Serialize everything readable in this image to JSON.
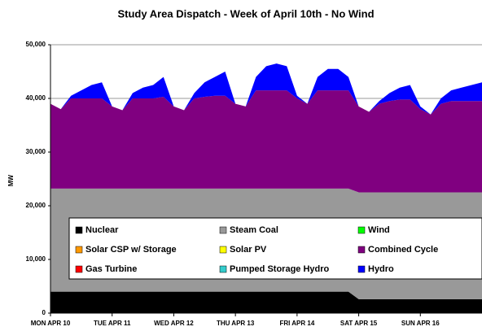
{
  "chart_data": {
    "type": "stacked-area",
    "title": "Study Area Dispatch - Week of April 10th - No Wind",
    "y_label": "MW",
    "x": [
      0,
      4,
      8,
      12,
      16,
      20,
      24,
      28,
      32,
      36,
      40,
      44,
      48,
      52,
      56,
      60,
      64,
      68,
      72,
      76,
      80,
      84,
      88,
      92,
      96,
      100,
      104,
      108,
      112,
      116,
      120,
      124,
      128,
      132,
      136,
      140,
      144,
      148,
      152,
      156,
      160,
      164,
      168
    ],
    "xlim": [
      0,
      168
    ],
    "xticks": [
      {
        "value": 0,
        "label": "MON APR 10"
      },
      {
        "value": 24,
        "label": "TUE APR 11"
      },
      {
        "value": 48,
        "label": "WED APR 12"
      },
      {
        "value": 72,
        "label": "THU APR 13"
      },
      {
        "value": 96,
        "label": "FRI APR 14"
      },
      {
        "value": 120,
        "label": "SAT APR 15"
      },
      {
        "value": 144,
        "label": "SUN APR 16"
      }
    ],
    "ylim": [
      0,
      50000
    ],
    "yticks": [
      0,
      {
        "value": 10000,
        "label": "10,000"
      },
      {
        "value": 20000,
        "label": "20,000"
      },
      {
        "value": 30000,
        "label": "30,000"
      },
      {
        "value": 40000,
        "label": "40,000"
      },
      {
        "value": 50000,
        "label": "50,000"
      }
    ],
    "grid": true,
    "legend": "inside-bottom",
    "series": [
      {
        "name": "Nuclear",
        "color": "#000000",
        "values": [
          4000,
          4000,
          4000,
          4000,
          4000,
          4000,
          4000,
          4000,
          4000,
          4000,
          4000,
          4000,
          4000,
          4000,
          4000,
          4000,
          4000,
          4000,
          4000,
          4000,
          4000,
          4000,
          4000,
          4000,
          4000,
          4000,
          4000,
          4000,
          4000,
          4000,
          2600,
          2600,
          2600,
          2600,
          2600,
          2600,
          2600,
          2600,
          2600,
          2600,
          2600,
          2600,
          2600
        ]
      },
      {
        "name": "Steam Coal",
        "color": "#999999",
        "values": [
          19200,
          19200,
          19200,
          19200,
          19200,
          19200,
          19200,
          19200,
          19200,
          19200,
          19200,
          19200,
          19200,
          19200,
          19200,
          19200,
          19200,
          19200,
          19200,
          19200,
          19200,
          19200,
          19200,
          19200,
          19200,
          19200,
          19200,
          19200,
          19200,
          19200,
          19900,
          19900,
          19900,
          19900,
          19900,
          19900,
          19900,
          19900,
          19900,
          19900,
          19900,
          19900,
          19900
        ]
      },
      {
        "name": "Wind",
        "color": "#00ff00",
        "values": [
          0,
          0,
          0,
          0,
          0,
          0,
          0,
          0,
          0,
          0,
          0,
          0,
          0,
          0,
          0,
          0,
          0,
          0,
          0,
          0,
          0,
          0,
          0,
          0,
          0,
          0,
          0,
          0,
          0,
          0,
          0,
          0,
          0,
          0,
          0,
          0,
          0,
          0,
          0,
          0,
          0,
          0,
          0
        ]
      },
      {
        "name": "Solar CSP w/ Storage",
        "color": "#ff9900",
        "values": [
          0,
          0,
          0,
          0,
          0,
          0,
          0,
          0,
          0,
          0,
          0,
          0,
          0,
          0,
          0,
          0,
          0,
          0,
          0,
          0,
          0,
          0,
          0,
          0,
          0,
          0,
          0,
          0,
          0,
          0,
          0,
          0,
          0,
          0,
          0,
          0,
          0,
          0,
          0,
          0,
          0,
          0,
          0
        ]
      },
      {
        "name": "Solar PV",
        "color": "#ffff00",
        "values": [
          0,
          0,
          0,
          0,
          0,
          0,
          0,
          0,
          0,
          0,
          0,
          0,
          0,
          0,
          0,
          0,
          0,
          0,
          0,
          0,
          0,
          0,
          0,
          0,
          0,
          0,
          0,
          0,
          0,
          0,
          0,
          0,
          0,
          0,
          0,
          0,
          0,
          0,
          0,
          0,
          0,
          0,
          0
        ]
      },
      {
        "name": "Combined Cycle",
        "color": "#800080",
        "values": [
          15800,
          14800,
          16800,
          16800,
          16800,
          16800,
          15300,
          14600,
          16800,
          16800,
          16800,
          17100,
          15300,
          14600,
          16800,
          17100,
          17300,
          17300,
          15800,
          15300,
          18300,
          18300,
          18300,
          18300,
          16800,
          15800,
          18300,
          18300,
          18300,
          18300,
          16000,
          15000,
          16500,
          17000,
          17300,
          17300,
          15500,
          14500,
          16500,
          17000,
          17000,
          17000,
          17000
        ]
      },
      {
        "name": "Gas Turbine",
        "color": "#ff0000",
        "values": [
          0,
          0,
          0,
          0,
          0,
          0,
          0,
          0,
          0,
          0,
          0,
          0,
          0,
          0,
          0,
          0,
          0,
          0,
          0,
          0,
          0,
          0,
          0,
          0,
          0,
          0,
          0,
          0,
          0,
          0,
          0,
          0,
          0,
          0,
          0,
          0,
          0,
          0,
          0,
          0,
          0,
          0,
          0
        ]
      },
      {
        "name": "Pumped Storage Hydro",
        "color": "#33cccc",
        "values": [
          0,
          0,
          0,
          0,
          0,
          0,
          0,
          0,
          0,
          0,
          0,
          0,
          0,
          0,
          0,
          0,
          0,
          0,
          0,
          0,
          0,
          0,
          0,
          0,
          0,
          0,
          0,
          0,
          0,
          0,
          0,
          0,
          0,
          0,
          0,
          0,
          0,
          0,
          0,
          0,
          0,
          0,
          0
        ]
      },
      {
        "name": "Hydro",
        "color": "#0000ff",
        "values": [
          0,
          0,
          500,
          1500,
          2500,
          3000,
          0,
          0,
          1000,
          2000,
          2500,
          3700,
          0,
          0,
          1000,
          2700,
          3500,
          4500,
          0,
          0,
          2500,
          4500,
          5000,
          4500,
          500,
          0,
          2500,
          4000,
          4000,
          2500,
          0,
          0,
          500,
          1500,
          2200,
          2700,
          500,
          0,
          1000,
          2000,
          2500,
          3000,
          3500
        ]
      }
    ]
  }
}
